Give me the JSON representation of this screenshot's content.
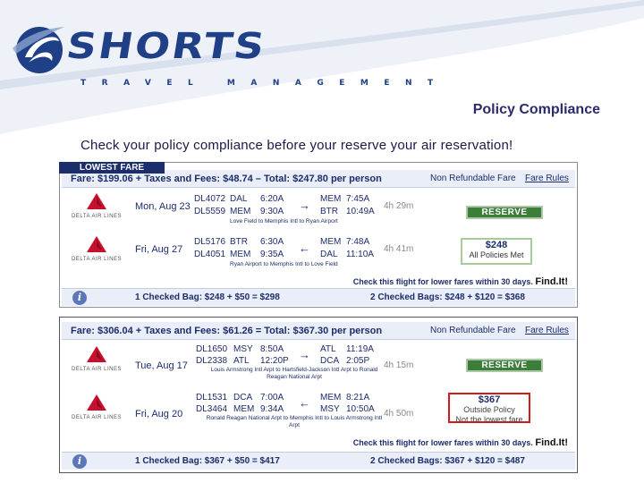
{
  "brand": {
    "name": "SHORTS",
    "tagline": "TRAVEL MANAGEMENT",
    "color": "#1f3f86"
  },
  "page": {
    "title": "Policy Compliance",
    "subtitle": "Check your policy compliance before your reserve your air reservation!"
  },
  "option1": {
    "tab": "LOWEST FARE",
    "fare": "Fare: $199.06 + Taxes and Fees: $48.74 – Total: $247.80 per person",
    "refund": "Non Refundable Fare",
    "rules": "Fare Rules",
    "legs": [
      {
        "airline": "DELTA AIR LINES",
        "date": "Mon, Aug 23",
        "flights": [
          "DL4072",
          "DL5559"
        ],
        "from": [
          "DAL",
          "MEM"
        ],
        "depart": [
          "6:20A",
          "9:30A"
        ],
        "arrow": "→",
        "to": [
          "MEM",
          "BTR"
        ],
        "arrive": [
          "7:45A",
          "10:49A"
        ],
        "duration": "4h 29m",
        "note": "Love Field to Memphis Intl to Ryan Airport"
      },
      {
        "airline": "DELTA AIR LINES",
        "date": "Fri, Aug 27",
        "flights": [
          "DL5176",
          "DL4051"
        ],
        "from": [
          "BTR",
          "MEM"
        ],
        "depart": [
          "6:30A",
          "9:35A"
        ],
        "arrow": "←",
        "to": [
          "MEM",
          "DAL"
        ],
        "arrive": [
          "7:48A",
          "11:10A"
        ],
        "duration": "4h 41m",
        "note": "Ryan Airport to Memphis Intl to Love Field"
      }
    ],
    "reserve": "RESERVE",
    "price": "$248",
    "policy": "All Policies Met",
    "lower_fare": "Check this flight for lower fares within 30 days.",
    "find": "Find.It!",
    "bag1": "1 Checked Bag: $248 + $50 = $298",
    "bag2": "2 Checked Bags: $248 + $120 = $368"
  },
  "option2": {
    "fare": "Fare: $306.04 + Taxes and Fees: $61.26 = Total: $367.30 per person",
    "refund": "Non Refundable Fare",
    "rules": "Fare Rules",
    "legs": [
      {
        "airline": "DELTA AIR LINES",
        "date": "Tue, Aug 17",
        "flights": [
          "DL1650",
          "DL2338"
        ],
        "from": [
          "MSY",
          "ATL"
        ],
        "depart": [
          "8:50A",
          "12:20P"
        ],
        "arrow": "→",
        "to": [
          "ATL",
          "DCA"
        ],
        "arrive": [
          "11:19A",
          "2:05P"
        ],
        "duration": "4h 15m",
        "note": "Louis Armstrong Intl Arpt to Hartsfield-Jackson Intl Arpt to Ronald Reagan National Arpt"
      },
      {
        "airline": "DELTA AIR LINES",
        "date": "Fri, Aug 20",
        "flights": [
          "DL1531",
          "DL3464"
        ],
        "from": [
          "DCA",
          "MEM"
        ],
        "depart": [
          "7:00A",
          "9:34A"
        ],
        "arrow": "←",
        "to": [
          "MEM",
          "MSY"
        ],
        "arrive": [
          "8:21A",
          "10:50A"
        ],
        "duration": "4h 50m",
        "note": "Ronald Reagan National Arpt to Memphis Intl to Louis Armstrong Intl Arpt"
      }
    ],
    "reserve": "RESERVE",
    "price": "$367",
    "policy_line1": "Outside Policy",
    "policy_line2": "Not the lowest fare",
    "lower_fare": "Check this flight for lower fares within 30 days.",
    "find": "Find.It!",
    "bag1": "1 Checked Bag: $367 + $50 = $417",
    "bag2": "2 Checked Bags: $367 + $120 = $487"
  },
  "colors": {
    "navy": "#1c2d6b",
    "reserve_green": "#3d7d3a",
    "policy_met": "#a6cc9c",
    "policy_fail": "#d11a1a",
    "delta_red": "#c8102e"
  }
}
